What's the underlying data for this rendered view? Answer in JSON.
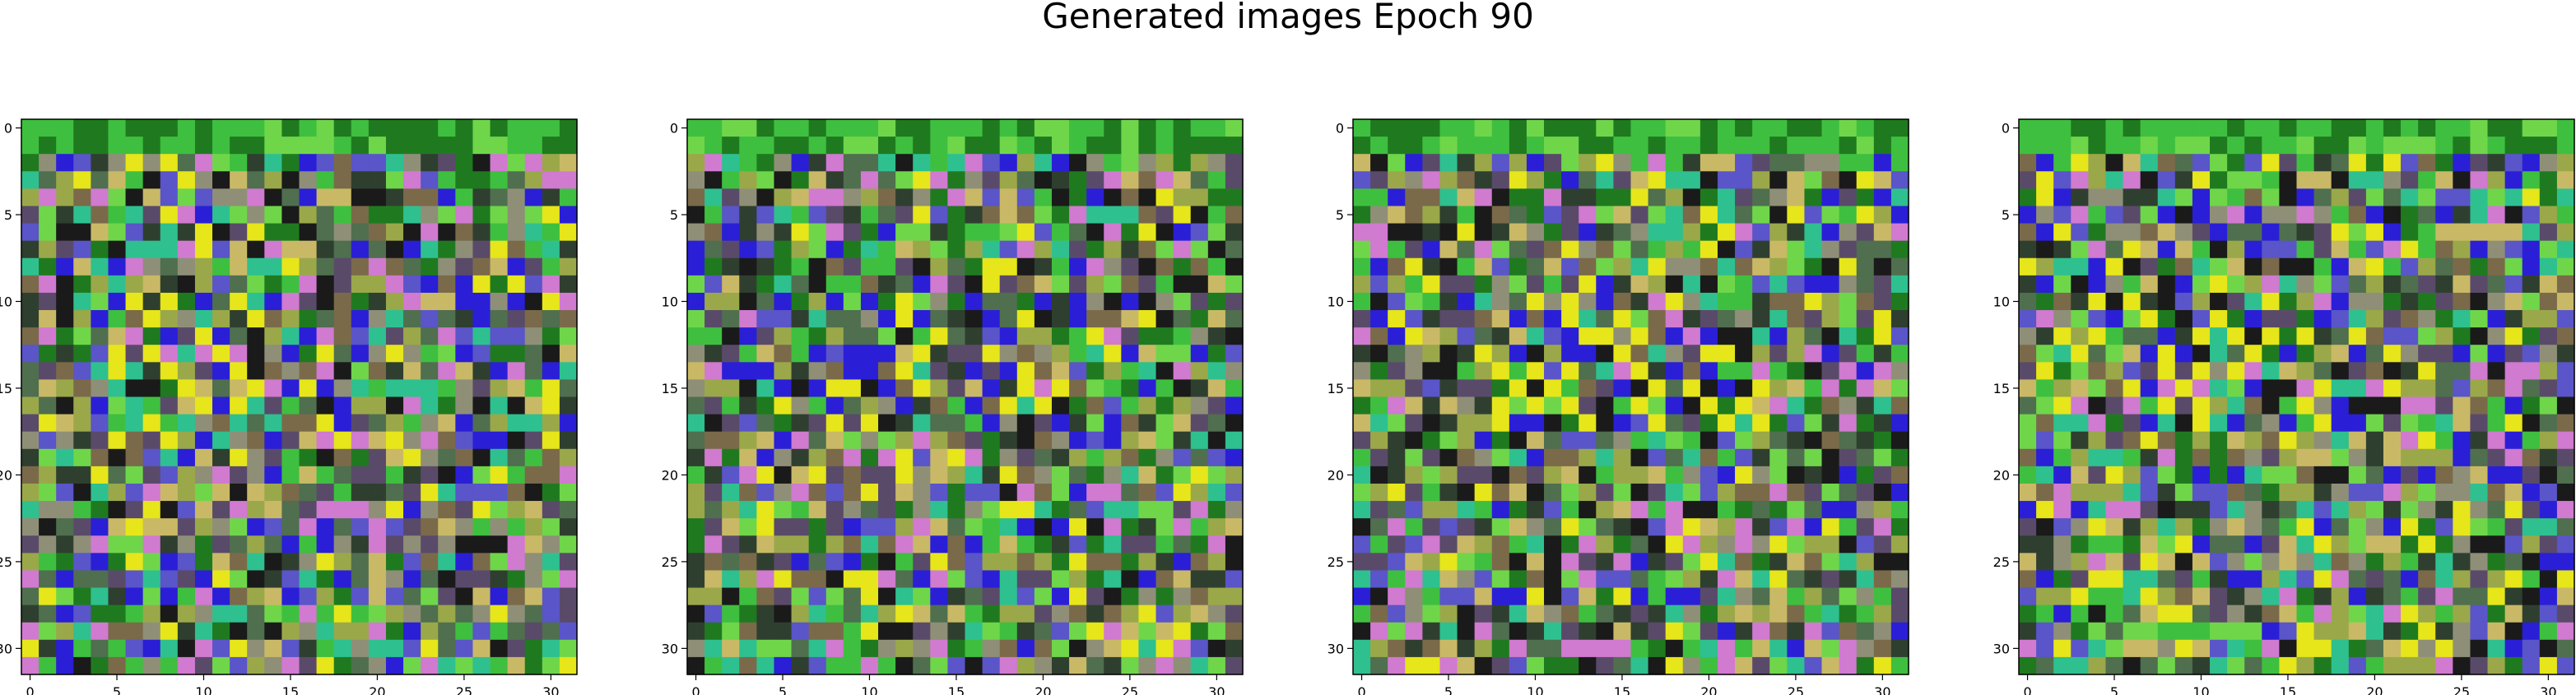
{
  "figure": {
    "title": "Generated images Epoch 90"
  },
  "chart_data": [
    {
      "type": "heatmap",
      "title": "",
      "xlabel": "",
      "ylabel": "",
      "xlim": [
        -0.5,
        31.5
      ],
      "ylim": [
        31.5,
        -0.5
      ],
      "xticks": [
        "0",
        "5",
        "10",
        "15",
        "20",
        "25",
        "30"
      ],
      "yticks": [
        "0",
        "5",
        "10",
        "15",
        "20",
        "25",
        "30"
      ],
      "grid": false,
      "shape": [
        32,
        32,
        3
      ],
      "seed": 11,
      "palette": [
        "#1f7a1f",
        "#3fbf3f",
        "#6fd64a",
        "#e6e61a",
        "#2a1fd6",
        "#5a55c8",
        "#d07ad0",
        "#c9b966",
        "#8f8f78",
        "#4f6f4f",
        "#1a1a1a",
        "#2f3f2f",
        "#7a6a4a",
        "#5a4a6a",
        "#9aa84a",
        "#2fc08f"
      ]
    },
    {
      "type": "heatmap",
      "title": "",
      "xlabel": "",
      "ylabel": "",
      "xlim": [
        -0.5,
        31.5
      ],
      "ylim": [
        31.5,
        -0.5
      ],
      "xticks": [
        "0",
        "5",
        "10",
        "15",
        "20",
        "25",
        "30"
      ],
      "yticks": [
        "0",
        "5",
        "10",
        "15",
        "20",
        "25",
        "30"
      ],
      "grid": false,
      "shape": [
        32,
        32,
        3
      ],
      "seed": 23,
      "palette": [
        "#1f7a1f",
        "#3fbf3f",
        "#6fd64a",
        "#e6e61a",
        "#2a1fd6",
        "#5a55c8",
        "#d07ad0",
        "#c9b966",
        "#8f8f78",
        "#4f6f4f",
        "#1a1a1a",
        "#2f3f2f",
        "#7a6a4a",
        "#5a4a6a",
        "#9aa84a",
        "#2fc08f"
      ]
    },
    {
      "type": "heatmap",
      "title": "",
      "xlabel": "",
      "ylabel": "",
      "xlim": [
        -0.5,
        31.5
      ],
      "ylim": [
        31.5,
        -0.5
      ],
      "xticks": [
        "0",
        "5",
        "10",
        "15",
        "20",
        "25",
        "30"
      ],
      "yticks": [
        "0",
        "5",
        "10",
        "15",
        "20",
        "25",
        "30"
      ],
      "grid": false,
      "shape": [
        32,
        32,
        3
      ],
      "seed": 37,
      "palette": [
        "#1f7a1f",
        "#3fbf3f",
        "#6fd64a",
        "#e6e61a",
        "#2a1fd6",
        "#5a55c8",
        "#d07ad0",
        "#c9b966",
        "#8f8f78",
        "#4f6f4f",
        "#1a1a1a",
        "#2f3f2f",
        "#7a6a4a",
        "#5a4a6a",
        "#9aa84a",
        "#2fc08f"
      ]
    },
    {
      "type": "heatmap",
      "title": "",
      "xlabel": "",
      "ylabel": "",
      "xlim": [
        -0.5,
        31.5
      ],
      "ylim": [
        31.5,
        -0.5
      ],
      "xticks": [
        "0",
        "5",
        "10",
        "15",
        "20",
        "25",
        "30"
      ],
      "yticks": [
        "0",
        "5",
        "10",
        "15",
        "20",
        "25",
        "30"
      ],
      "grid": false,
      "shape": [
        32,
        32,
        3
      ],
      "seed": 41,
      "palette": [
        "#1f7a1f",
        "#3fbf3f",
        "#6fd64a",
        "#e6e61a",
        "#2a1fd6",
        "#5a55c8",
        "#d07ad0",
        "#c9b966",
        "#8f8f78",
        "#4f6f4f",
        "#1a1a1a",
        "#2f3f2f",
        "#7a6a4a",
        "#5a4a6a",
        "#9aa84a",
        "#2fc08f"
      ]
    }
  ]
}
